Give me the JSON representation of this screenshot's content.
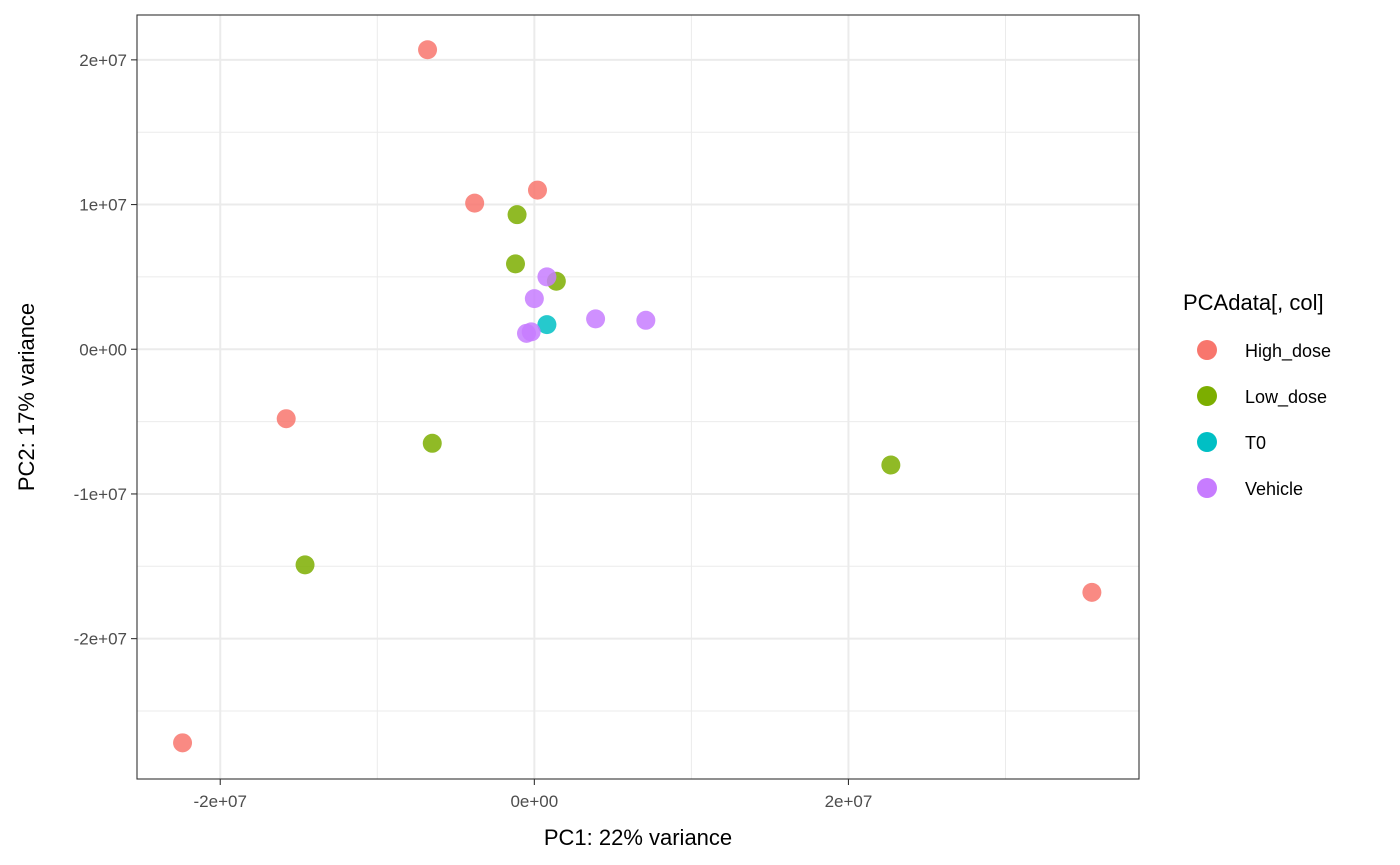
{
  "chart_data": {
    "type": "scatter",
    "title": "",
    "xlabel": "PC1: 22% variance",
    "ylabel": "PC2: 17% variance",
    "xlim": [
      -25300000,
      38500000
    ],
    "ylim": [
      -29700000,
      23100000
    ],
    "x_ticks": [
      {
        "value": -20000000,
        "label": "-2e+07"
      },
      {
        "value": 0,
        "label": "0e+00"
      },
      {
        "value": 20000000,
        "label": "2e+07"
      }
    ],
    "y_ticks": [
      {
        "value": 20000000,
        "label": "2e+07"
      },
      {
        "value": 10000000,
        "label": "1e+07"
      },
      {
        "value": 0,
        "label": "0e+00"
      },
      {
        "value": -10000000,
        "label": "-1e+07"
      },
      {
        "value": -20000000,
        "label": "-2e+07"
      }
    ],
    "x_minor_ticks": [
      -30000000,
      -10000000,
      10000000,
      30000000
    ],
    "y_minor_ticks": [
      15000000,
      5000000,
      -5000000,
      -15000000,
      -25000000
    ],
    "grid": true,
    "legend": {
      "title": "PCAdata[, col]",
      "position": "right"
    },
    "series": [
      {
        "name": "High_dose",
        "color": "#F8766D",
        "points": [
          {
            "x": -6800000,
            "y": 20700000
          },
          {
            "x": -3800000,
            "y": 10100000
          },
          {
            "x": 200000,
            "y": 11000000
          },
          {
            "x": -15800000,
            "y": -4800000
          },
          {
            "x": -22400000,
            "y": -27200000
          },
          {
            "x": 35500000,
            "y": -16800000
          }
        ]
      },
      {
        "name": "Low_dose",
        "color": "#7CAE00",
        "points": [
          {
            "x": -1100000,
            "y": 9300000
          },
          {
            "x": -1200000,
            "y": 5900000
          },
          {
            "x": 1400000,
            "y": 4700000
          },
          {
            "x": -6500000,
            "y": -6500000
          },
          {
            "x": -14600000,
            "y": -14900000
          },
          {
            "x": 22700000,
            "y": -8000000
          }
        ]
      },
      {
        "name": "T0",
        "color": "#00BFC4",
        "points": [
          {
            "x": 800000,
            "y": 1700000
          }
        ]
      },
      {
        "name": "Vehicle",
        "color": "#C77CFF",
        "points": [
          {
            "x": 800000,
            "y": 5000000
          },
          {
            "x": 0,
            "y": 3500000
          },
          {
            "x": 3900000,
            "y": 2100000
          },
          {
            "x": 7100000,
            "y": 2000000
          },
          {
            "x": -500000,
            "y": 1100000
          },
          {
            "x": -200000,
            "y": 1200000
          }
        ]
      }
    ]
  }
}
